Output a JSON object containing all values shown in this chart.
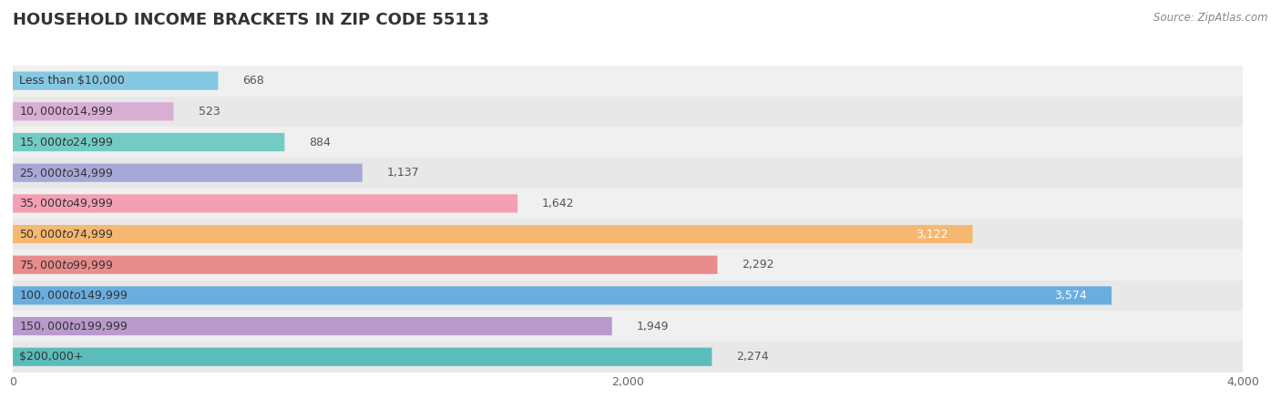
{
  "title": "HOUSEHOLD INCOME BRACKETS IN ZIP CODE 55113",
  "source": "Source: ZipAtlas.com",
  "categories": [
    "Less than $10,000",
    "$10,000 to $14,999",
    "$15,000 to $24,999",
    "$25,000 to $34,999",
    "$35,000 to $49,999",
    "$50,000 to $74,999",
    "$75,000 to $99,999",
    "$100,000 to $149,999",
    "$150,000 to $199,999",
    "$200,000+"
  ],
  "values": [
    668,
    523,
    884,
    1137,
    1642,
    3122,
    2292,
    3574,
    1949,
    2274
  ],
  "bar_colors": [
    "#85c8e2",
    "#d9aed4",
    "#72ccc4",
    "#a8a8d8",
    "#f4a0b4",
    "#f5b870",
    "#e88c8c",
    "#6aaee0",
    "#b89acc",
    "#5bbcbc"
  ],
  "row_bg_colors": [
    "#f0f0f0",
    "#e8e8e8"
  ],
  "xlim": [
    0,
    4000
  ],
  "xticks": [
    0,
    2000,
    4000
  ],
  "title_fontsize": 13,
  "label_fontsize": 9,
  "value_fontsize": 9,
  "source_fontsize": 8.5
}
